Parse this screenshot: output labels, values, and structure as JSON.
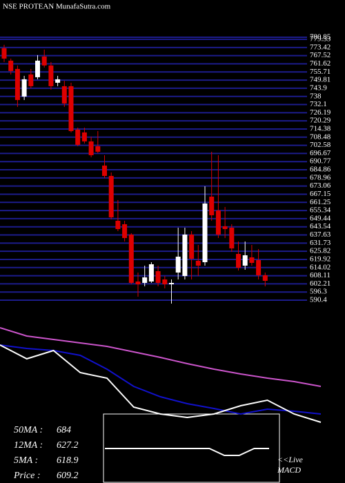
{
  "chart_data": {
    "type": "candlestick",
    "title": "NSE PROTEAN MunafaSutra.com",
    "ylim": [
      590.4,
      780.85
    ],
    "yticks": [
      780.85,
      779.33,
      773.42,
      767.52,
      761.62,
      755.71,
      749.81,
      743.9,
      738,
      732.1,
      726.19,
      720.29,
      714.38,
      708.48,
      702.58,
      696.67,
      690.77,
      684.86,
      678.96,
      673.06,
      667.15,
      661.25,
      655.34,
      649.44,
      643.54,
      637.63,
      631.73,
      625.82,
      619.92,
      614.02,
      608.11,
      602.21,
      596.3,
      590.4
    ],
    "grid": true,
    "grid_color": "#1c1c8c",
    "up_color": "#ffffff",
    "down_color": "#dd0000",
    "open": [
      772.9,
      763.9,
      757.9,
      737.9,
      753.9,
      751.9,
      766.9,
      760.4,
      747.9,
      745.4,
      745.4,
      713.9,
      711.9,
      705.4,
      701.9,
      687.9,
      680.4,
      647.9,
      645.4,
      637.9,
      603.9,
      602.9,
      603.9,
      611.4,
      605.4,
      601.9,
      610.4,
      607.9,
      637.9,
      618.9,
      617.9,
      665.4,
      655.4,
      643.9,
      642.9,
      623.9,
      615.4,
      621.4,
      619.4,
      608.4
    ],
    "high": [
      775.4,
      765.4,
      760.4,
      752.9,
      757.9,
      767.9,
      771.9,
      762.9,
      752.9,
      749.4,
      747.9,
      715.4,
      715.4,
      708.9,
      712.9,
      695.4,
      682.9,
      662.9,
      647.9,
      638.9,
      610.4,
      615.4,
      617.9,
      615.4,
      607.9,
      605.4,
      642.9,
      642.9,
      640.4,
      630.4,
      672.9,
      697.9,
      695.4,
      657.9,
      645.4,
      632.9,
      632.9,
      630.4,
      627.4,
      610.4
    ],
    "low": [
      762.9,
      753.9,
      730.4,
      735.4,
      743.9,
      750.4,
      758.9,
      742.9,
      745.4,
      730.4,
      711.9,
      701.9,
      703.9,
      693.9,
      696.9,
      678.9,
      648.9,
      640.4,
      632.9,
      601.9,
      592.9,
      600.4,
      602.9,
      600.4,
      598.9,
      587.9,
      605.4,
      605.4,
      605.4,
      607.9,
      615.4,
      647.9,
      635.4,
      635.4,
      625.4,
      611.9,
      612.4,
      615.4,
      605.4,
      600.4
    ],
    "close": [
      765.4,
      756.4,
      735.4,
      750.4,
      745.4,
      763.9,
      760.4,
      745.4,
      750.4,
      732.9,
      712.9,
      702.9,
      705.4,
      695.4,
      697.9,
      680.4,
      650.4,
      641.9,
      635.4,
      602.9,
      601.9,
      606.9,
      616.4,
      602.9,
      601.9,
      602.9,
      621.9,
      637.9,
      620.4,
      615.4,
      660.4,
      651.9,
      637.9,
      641.9,
      627.9,
      613.9,
      622.9,
      617.4,
      608.4,
      604.4
    ],
    "ma_ylim": [
      560,
      800
    ],
    "ma_series": [
      {
        "color": "#cc55cc",
        "values": [
          792,
          772.8,
          764.8,
          756.8,
          748.8,
          736,
          723.2,
          708.8,
          696,
          684.8,
          675.2,
          667.2,
          656
        ]
      },
      {
        "color": "#1111cc",
        "values": [
          752,
          744,
          739.2,
          728,
          696,
          656,
          632,
          616,
          604.8,
          592,
          603.2,
          598.4,
          592
        ]
      },
      {
        "color": "#ffffff",
        "values": [
          752,
          720,
          739.2,
          688,
          675.2,
          608,
          592,
          584,
          592,
          611.2,
          624,
          592,
          572.8
        ]
      }
    ],
    "macd_ylim": [
      -2,
      2
    ],
    "macd_values": [
      0,
      0,
      0,
      0,
      0,
      0,
      0,
      0,
      -0.4,
      -0.4,
      0,
      0
    ],
    "macd_label": [
      "<<Live",
      "MACD"
    ],
    "info": [
      {
        "label": "50MA :",
        "value": 684
      },
      {
        "label": "12MA :",
        "value": 627.2
      },
      {
        "label": "5MA :",
        "value": 618.9
      },
      {
        "label": "Price   :",
        "value": 609.2
      }
    ]
  }
}
